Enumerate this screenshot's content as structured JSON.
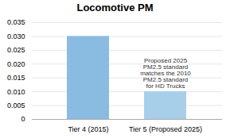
{
  "chart_data": {
    "type": "bar",
    "title": "Locomotive PM",
    "categories": [
      "Tier 4 (2015)",
      "Tier 5 (Proposed 2025)"
    ],
    "values": [
      0.03,
      0.01
    ],
    "colors": [
      "#89bce0",
      "#a8cfea"
    ],
    "ylim": [
      0,
      0.035
    ],
    "yticks": [
      0,
      0.005,
      {
        "value": 0.01,
        "label": "0.010"
      },
      0.015,
      {
        "value": 0.02,
        "label": "0.020"
      },
      0.025,
      {
        "value": 0.03,
        "label": "0.030"
      },
      0.035
    ],
    "grid": true,
    "annotation": "Proposed 2025\nPM2.5 standard\nmatches the 2010\nPM2.5 standard\nfor HD Trucks"
  }
}
